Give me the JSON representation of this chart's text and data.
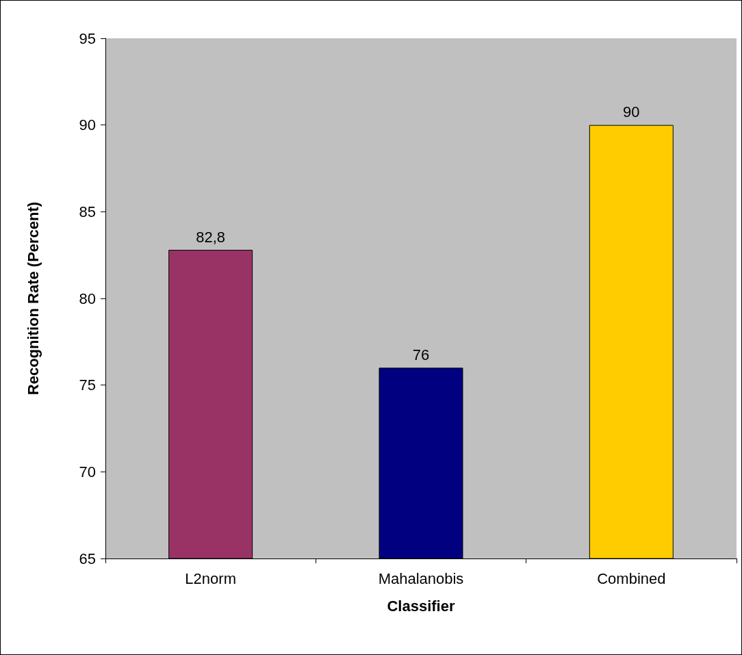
{
  "chart_data": {
    "type": "bar",
    "xlabel": "Classifier",
    "ylabel": "Recognition Rate (Percent)",
    "categories": [
      "L2norm",
      "Mahalanobis",
      "Combined"
    ],
    "values": [
      82.8,
      76,
      90
    ],
    "colors": [
      "#993366",
      "#000080",
      "#ffcc00"
    ],
    "value_labels": [
      "82,8",
      "76",
      "90"
    ],
    "ylim": [
      65,
      95
    ],
    "yticks": [
      65,
      70,
      75,
      80,
      85,
      90,
      95
    ]
  }
}
